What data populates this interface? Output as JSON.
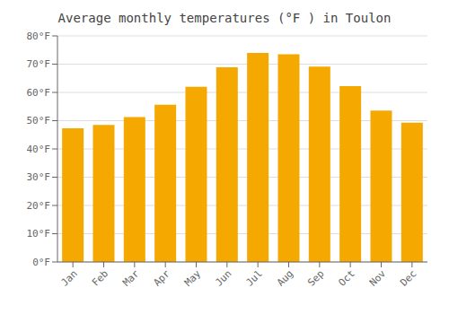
{
  "chart_data": {
    "type": "bar",
    "title": "Average monthly temperatures (°F ) in Toulon",
    "categories": [
      "Jan",
      "Feb",
      "Mar",
      "Apr",
      "May",
      "Jun",
      "Jul",
      "Aug",
      "Sep",
      "Oct",
      "Nov",
      "Dec"
    ],
    "values": [
      47.3,
      48.5,
      51.3,
      55.6,
      62.0,
      68.9,
      74.0,
      73.5,
      69.1,
      62.2,
      53.6,
      49.3
    ],
    "color": "#F5A800",
    "ylim": [
      0,
      80
    ],
    "yticks": [
      {
        "value": 0,
        "label": "0°F"
      },
      {
        "value": 10,
        "label": "10°F"
      },
      {
        "value": 20,
        "label": "20°F"
      },
      {
        "value": 30,
        "label": "30°F"
      },
      {
        "value": 40,
        "label": "40°F"
      },
      {
        "value": 50,
        "label": "50°F"
      },
      {
        "value": 60,
        "label": "60°F"
      },
      {
        "value": 70,
        "label": "70°F"
      },
      {
        "value": 80,
        "label": "80°F"
      }
    ],
    "grid": true
  }
}
